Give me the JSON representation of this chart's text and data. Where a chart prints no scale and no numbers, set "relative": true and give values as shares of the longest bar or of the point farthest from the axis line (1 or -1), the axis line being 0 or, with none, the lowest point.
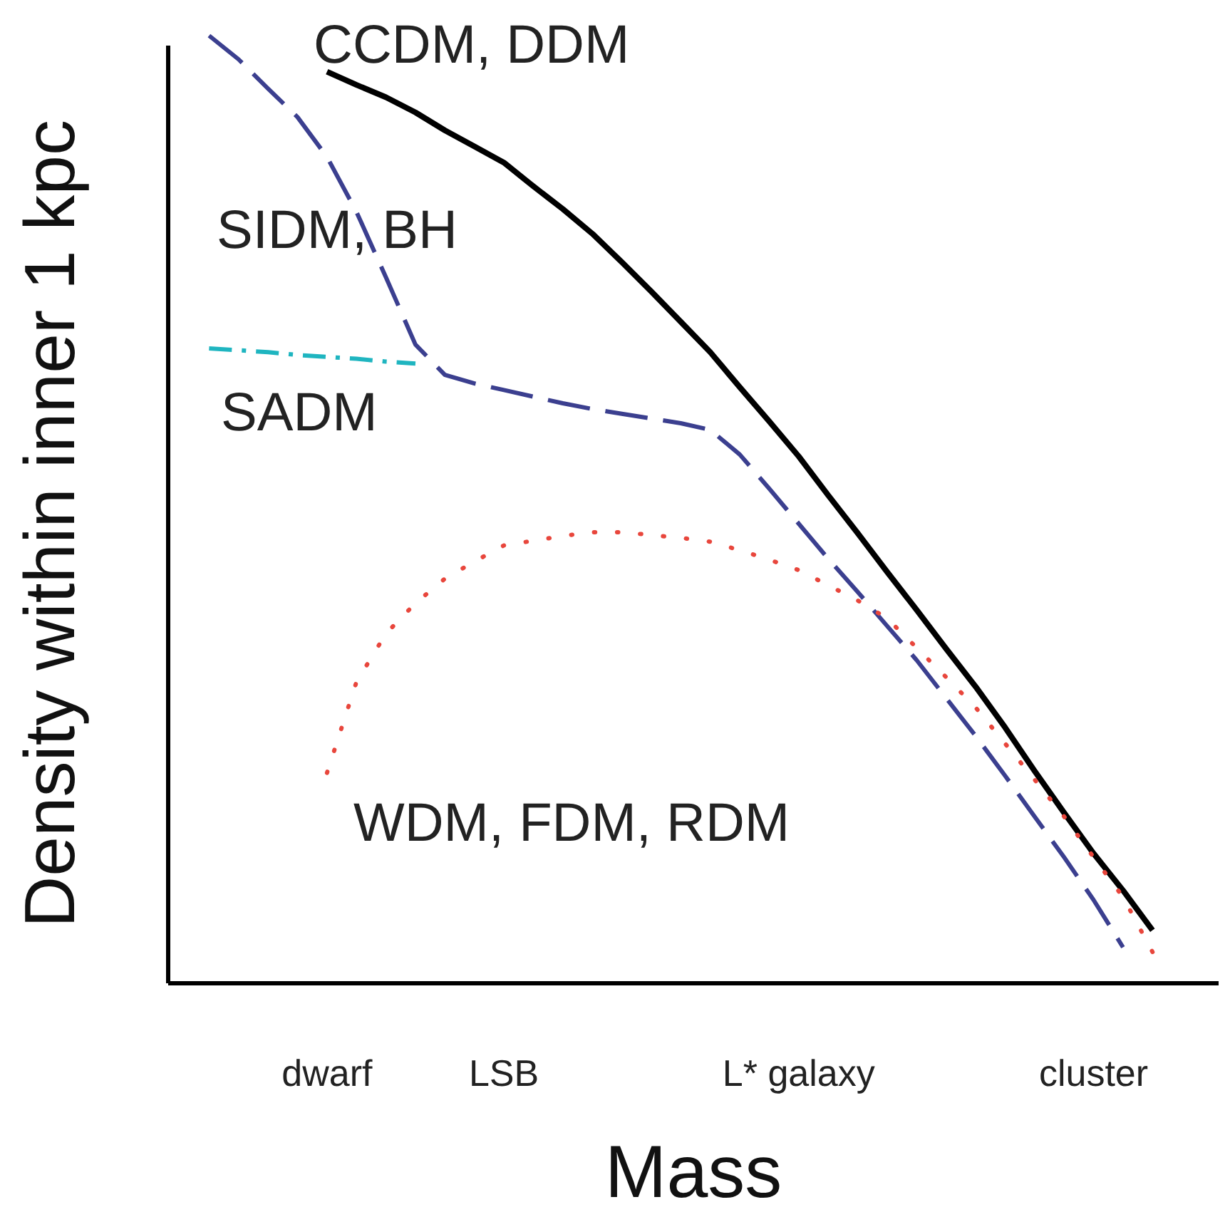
{
  "chart_data": {
    "type": "line",
    "relative": true,
    "xlabel": "Mass",
    "ylabel": "Density within inner 1 kpc",
    "categories": [
      null,
      null,
      null,
      null,
      null,
      "dwarf",
      null,
      null,
      null,
      null,
      null,
      "LSB",
      null,
      null,
      null,
      null,
      null,
      null,
      null,
      null,
      null,
      "L* galaxy",
      null,
      null,
      null,
      null,
      null,
      null,
      null,
      null,
      null,
      "cluster",
      null,
      null,
      null,
      null
    ],
    "tick_labels": "x",
    "grid": false,
    "legend": false,
    "marker": "none",
    "series": [
      {
        "name": "CCDM, DDM",
        "color": "#000000",
        "line_style": "solid",
        "values": [
          null,
          null,
          null,
          null,
          null,
          0.962,
          0.948,
          0.935,
          0.919,
          0.9,
          0.883,
          0.866,
          0.841,
          0.817,
          0.791,
          0.761,
          0.73,
          0.698,
          0.666,
          0.629,
          0.593,
          0.556,
          0.515,
          0.475,
          0.434,
          0.394,
          0.353,
          0.313,
          0.27,
          0.224,
          0.18,
          0.137,
          0.098,
          0.056,
          null,
          null
        ]
      },
      {
        "name": "SIDM, BH",
        "color": "#3b3f8f",
        "line_style": "dashed",
        "values": [
          null,
          1.0,
          0.975,
          0.944,
          0.914,
          0.872,
          0.814,
          0.745,
          0.674,
          0.642,
          0.633,
          0.626,
          0.619,
          0.612,
          0.606,
          0.601,
          0.596,
          0.591,
          0.584,
          0.558,
          0.522,
          0.485,
          0.448,
          0.413,
          0.377,
          0.341,
          0.301,
          0.261,
          0.219,
          0.176,
          0.133,
          0.088,
          0.038,
          null,
          null,
          null
        ]
      },
      {
        "name": "SADM",
        "color": "#1fb5c0",
        "line_style": "dashdot",
        "values": [
          null,
          0.67,
          0.668,
          0.666,
          0.663,
          0.661,
          0.659,
          0.656,
          0.654,
          null,
          null,
          null,
          null,
          null,
          null,
          null,
          null,
          null,
          null,
          null,
          null,
          null,
          null,
          null,
          null,
          null,
          null,
          null,
          null,
          null,
          null,
          null,
          null,
          null,
          null,
          null
        ]
      },
      {
        "name": "WDM, FDM, RDM",
        "color": "#e8463c",
        "line_style": "dotted",
        "values": [
          null,
          null,
          null,
          null,
          null,
          0.222,
          0.318,
          0.369,
          0.401,
          0.427,
          0.445,
          0.462,
          0.467,
          0.472,
          0.476,
          0.476,
          0.473,
          0.47,
          0.466,
          0.457,
          0.447,
          0.436,
          0.42,
          0.404,
          0.385,
          0.354,
          0.323,
          0.291,
          0.253,
          0.215,
          0.176,
          0.133,
          0.091,
          0.033,
          null,
          null
        ]
      }
    ]
  }
}
